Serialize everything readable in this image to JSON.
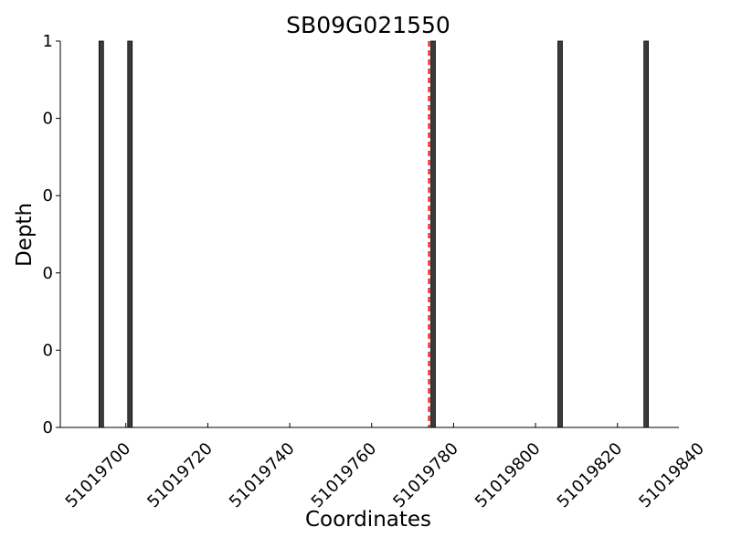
{
  "chart_data": {
    "type": "bar",
    "title": "SB09G021550",
    "xlabel": "Coordinates",
    "ylabel": "Depth",
    "xlim": [
      51019684,
      51019835
    ],
    "ylim": [
      0,
      1
    ],
    "x_ticks": [
      51019700,
      51019720,
      51019740,
      51019760,
      51019780,
      51019800,
      51019820,
      51019840
    ],
    "y_ticks": [
      0,
      0.2,
      0.4,
      0.6,
      0.8,
      1
    ],
    "y_tick_labels": [
      "0",
      "0",
      "0",
      "0",
      "0",
      "1"
    ],
    "x": [
      51019694,
      51019701,
      51019775,
      51019806,
      51019827
    ],
    "values": [
      1,
      1,
      1,
      1,
      1
    ],
    "marker_line": {
      "x": 51019774,
      "color": "#ff0000",
      "style": "dashed"
    },
    "grid": false,
    "bar_color": "#3b3b3b"
  }
}
